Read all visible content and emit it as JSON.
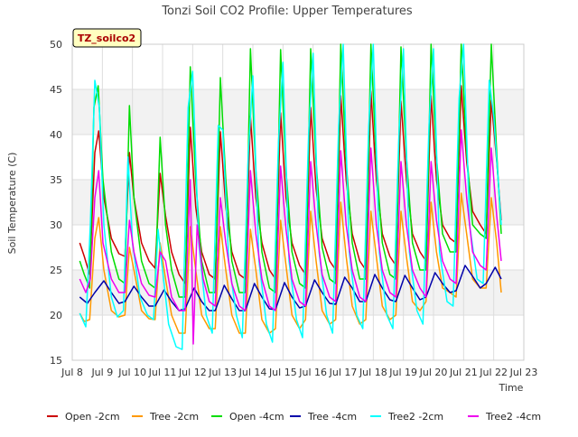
{
  "chart_data": {
    "type": "line",
    "title": "Tonzi Soil CO2 Profile: Upper Temperatures",
    "xlabel": "Time",
    "ylabel": "Soil Temperature (C)",
    "badge": "TZ_soilco2",
    "ylim": [
      15,
      50
    ],
    "yticks": [
      15,
      20,
      25,
      30,
      35,
      40,
      45,
      50
    ],
    "xlim": [
      8,
      23
    ],
    "xticks": [
      8,
      9,
      10,
      11,
      12,
      13,
      14,
      15,
      16,
      17,
      18,
      19,
      20,
      21,
      22,
      23
    ],
    "xtick_labels": [
      "Jul 8",
      "Jul 9",
      "Jul 10",
      "Jul 11",
      "Jul 12",
      "Jul 13",
      "Jul 14",
      "Jul 15",
      "Jul 16",
      "Jul 17",
      "Jul 18",
      "Jul 19",
      "Jul 20",
      "Jul 21",
      "Jul 22",
      "Jul 23"
    ],
    "grid": true,
    "legend_position": "bottom",
    "band_color": "#f2f2f2",
    "series": [
      {
        "name": "Open -2cm",
        "color": "#cc0000",
        "x": [
          8.25,
          8.4,
          8.58,
          8.75,
          8.88,
          9.05,
          9.3,
          9.55,
          9.75,
          9.9,
          10.05,
          10.3,
          10.55,
          10.75,
          10.92,
          11.1,
          11.3,
          11.55,
          11.75,
          11.92,
          12.1,
          12.3,
          12.55,
          12.75,
          12.92,
          13.1,
          13.3,
          13.55,
          13.75,
          13.92,
          14.1,
          14.3,
          14.55,
          14.75,
          14.92,
          15.1,
          15.3,
          15.55,
          15.75,
          15.92,
          16.1,
          16.3,
          16.55,
          16.75,
          16.92,
          17.1,
          17.3,
          17.55,
          17.75,
          17.92,
          18.1,
          18.3,
          18.55,
          18.75,
          18.92,
          19.1,
          19.3,
          19.55,
          19.75,
          19.92,
          20.1,
          20.3,
          20.55,
          20.75,
          20.92,
          21.1,
          21.3,
          21.55,
          21.75,
          21.92,
          22.1,
          22.25
        ],
        "y": [
          28,
          26.5,
          24.5,
          38,
          40.4,
          33,
          28.5,
          26.8,
          26.5,
          38,
          33,
          28,
          26,
          25.2,
          35.7,
          31,
          27,
          24.5,
          23.5,
          40.8,
          32,
          27,
          24.5,
          24,
          40.3,
          32,
          27,
          24.5,
          24,
          42,
          33,
          28,
          25,
          24,
          42.4,
          33,
          28,
          25.5,
          24.5,
          43,
          34,
          28.5,
          26,
          25,
          44.3,
          35,
          29,
          26,
          25,
          44.8,
          35,
          29,
          26.5,
          25.5,
          43.7,
          35,
          29,
          27,
          26,
          44.3,
          35,
          30,
          28.5,
          28,
          45.4,
          37,
          31.5,
          30,
          29,
          43.8,
          37,
          30.5
        ]
      },
      {
        "name": "Tree -2cm",
        "color": "#ff9900",
        "x": [
          8.25,
          8.4,
          8.58,
          8.75,
          8.88,
          9.05,
          9.3,
          9.55,
          9.75,
          9.9,
          10.05,
          10.3,
          10.55,
          10.75,
          10.92,
          11.1,
          11.3,
          11.55,
          11.75,
          11.92,
          12.1,
          12.3,
          12.55,
          12.75,
          12.92,
          13.1,
          13.3,
          13.55,
          13.75,
          13.92,
          14.1,
          14.3,
          14.55,
          14.75,
          14.92,
          15.1,
          15.3,
          15.55,
          15.75,
          15.92,
          16.1,
          16.3,
          16.55,
          16.75,
          16.92,
          17.1,
          17.3,
          17.55,
          17.75,
          17.92,
          18.1,
          18.3,
          18.55,
          18.75,
          18.92,
          19.1,
          19.3,
          19.55,
          19.75,
          19.92,
          20.1,
          20.3,
          20.55,
          20.75,
          20.92,
          21.1,
          21.3,
          21.55,
          21.75,
          21.92,
          22.1,
          22.25
        ],
        "y": [
          20.2,
          19.3,
          19.5,
          28.5,
          30.8,
          25,
          20.5,
          19.8,
          20,
          27.5,
          25,
          20.5,
          19.6,
          19.5,
          28,
          24,
          20,
          18,
          18,
          29.8,
          25,
          20,
          18.5,
          18.5,
          29.8,
          25,
          20,
          18,
          18,
          29.5,
          25,
          19.5,
          18,
          18.5,
          30.5,
          25.5,
          20,
          18.5,
          19.5,
          31.5,
          26,
          20.5,
          19,
          19.5,
          32.5,
          26.5,
          21,
          19,
          19.5,
          31.5,
          26.5,
          21,
          19.5,
          20,
          31.5,
          26.5,
          21.5,
          20.5,
          21.5,
          32.5,
          27,
          23,
          22.5,
          22,
          33.5,
          29,
          24,
          23,
          23,
          33,
          28,
          22.5
        ]
      },
      {
        "name": "Open -4cm",
        "color": "#00dd00",
        "x": [
          8.25,
          8.4,
          8.58,
          8.72,
          8.86,
          9.02,
          9.3,
          9.55,
          9.75,
          9.9,
          10.05,
          10.3,
          10.55,
          10.75,
          10.92,
          11.1,
          11.3,
          11.55,
          11.75,
          11.92,
          12.1,
          12.3,
          12.55,
          12.75,
          12.92,
          13.1,
          13.3,
          13.55,
          13.75,
          13.92,
          14.1,
          14.3,
          14.55,
          14.75,
          14.92,
          15.1,
          15.3,
          15.55,
          15.75,
          15.92,
          16.1,
          16.3,
          16.55,
          16.75,
          16.92,
          17.1,
          17.3,
          17.55,
          17.75,
          17.92,
          18.1,
          18.3,
          18.55,
          18.75,
          18.92,
          19.1,
          19.3,
          19.55,
          19.75,
          19.92,
          20.1,
          20.3,
          20.55,
          20.75,
          20.92,
          21.1,
          21.3,
          21.55,
          21.75,
          21.92,
          22.1,
          22.25
        ],
        "y": [
          26,
          24.5,
          23,
          43,
          45.4,
          35,
          27,
          24,
          23.5,
          43.2,
          33,
          26,
          23.5,
          23,
          39.7,
          30,
          25,
          22,
          22,
          47.5,
          35,
          26,
          22.5,
          22.5,
          46.3,
          35,
          26,
          22.5,
          22.5,
          49.5,
          36,
          27,
          23,
          22.5,
          49.4,
          36,
          27,
          23.5,
          23,
          49.5,
          37,
          27.5,
          24,
          23.5,
          50,
          37,
          28,
          24,
          24,
          50,
          37,
          28,
          24.5,
          24,
          49.7,
          37.5,
          28,
          25,
          25,
          50,
          37.5,
          29,
          27,
          27,
          50,
          38,
          30,
          29,
          28.5,
          50,
          38,
          29
        ]
      },
      {
        "name": "Tree -4cm",
        "color": "#0000aa",
        "x": [
          8.25,
          8.5,
          8.75,
          9.05,
          9.3,
          9.55,
          9.75,
          10.05,
          10.3,
          10.55,
          10.75,
          11.05,
          11.3,
          11.55,
          11.75,
          12.05,
          12.3,
          12.55,
          12.75,
          13.05,
          13.3,
          13.55,
          13.75,
          14.05,
          14.3,
          14.55,
          14.75,
          15.05,
          15.3,
          15.55,
          15.75,
          16.05,
          16.3,
          16.55,
          16.75,
          17.05,
          17.3,
          17.55,
          17.75,
          18.05,
          18.3,
          18.55,
          18.75,
          19.05,
          19.3,
          19.55,
          19.75,
          20.05,
          20.3,
          20.55,
          20.75,
          21.05,
          21.3,
          21.55,
          21.75,
          22.05,
          22.25
        ],
        "y": [
          22,
          21.3,
          22.5,
          23.8,
          22.5,
          21.3,
          21.5,
          23.2,
          22,
          21,
          21,
          22.8,
          21.5,
          20.5,
          20.7,
          23,
          21.5,
          20.5,
          20.5,
          23.3,
          21.8,
          20.5,
          20.5,
          23.5,
          22,
          20.7,
          20.6,
          23.6,
          22,
          20.8,
          21,
          23.9,
          22.5,
          21.3,
          21.2,
          24.2,
          23,
          21.5,
          21.5,
          24.5,
          23,
          21.7,
          21.5,
          24.4,
          23,
          21.7,
          22,
          24.7,
          23.5,
          22.5,
          22.7,
          25.5,
          24.3,
          23,
          23.5,
          25.3,
          24
        ]
      },
      {
        "name": "Tree2 -2cm",
        "color": "#00ffff",
        "x": [
          8.25,
          8.45,
          8.6,
          8.75,
          8.9,
          9.05,
          9.3,
          9.5,
          9.7,
          9.85,
          10.0,
          10.25,
          10.5,
          10.7,
          10.85,
          11.0,
          11.2,
          11.45,
          11.65,
          11.85,
          12.0,
          12.2,
          12.45,
          12.65,
          12.85,
          13.0,
          13.2,
          13.45,
          13.65,
          13.85,
          14.0,
          14.2,
          14.45,
          14.65,
          14.85,
          15.0,
          15.2,
          15.45,
          15.65,
          15.85,
          16.0,
          16.2,
          16.45,
          16.65,
          16.85,
          17.0,
          17.2,
          17.45,
          17.65,
          17.85,
          18.0,
          18.2,
          18.45,
          18.65,
          18.85,
          19.0,
          19.2,
          19.45,
          19.65,
          19.85,
          20.0,
          20.2,
          20.45,
          20.65,
          20.85,
          21.0,
          21.2,
          21.45,
          21.65,
          21.85,
          22.0,
          22.25
        ],
        "y": [
          20.2,
          18.7,
          30,
          46,
          43,
          30,
          22,
          19.8,
          20.5,
          37.5,
          28,
          22,
          20,
          19.5,
          29.5,
          25,
          19,
          16.5,
          16.2,
          43,
          47,
          28,
          20,
          18,
          41,
          40.5,
          26,
          20,
          17.5,
          38,
          46.5,
          26,
          19,
          17,
          39,
          48,
          26,
          19.5,
          17.5,
          40,
          49,
          27,
          20,
          18,
          41,
          50,
          27,
          20,
          18.5,
          41,
          50,
          27,
          20,
          18.5,
          40,
          49.5,
          27,
          20.5,
          19,
          41,
          49.5,
          27,
          21.5,
          21,
          44,
          50,
          30,
          24,
          23.5,
          46,
          42,
          30
        ]
      },
      {
        "name": "Tree2 -4cm",
        "color": "#ee00ee",
        "x": [
          8.25,
          8.45,
          8.6,
          8.75,
          8.88,
          9.02,
          9.3,
          9.55,
          9.75,
          9.9,
          10.05,
          10.3,
          10.55,
          10.75,
          10.92,
          11.1,
          11.3,
          11.55,
          11.75,
          11.92,
          12.02,
          12.15,
          12.35,
          12.55,
          12.75,
          12.92,
          13.1,
          13.3,
          13.55,
          13.75,
          13.92,
          14.1,
          14.3,
          14.55,
          14.75,
          14.92,
          15.1,
          15.3,
          15.55,
          15.75,
          15.92,
          16.1,
          16.3,
          16.55,
          16.75,
          16.92,
          17.1,
          17.3,
          17.55,
          17.75,
          17.92,
          18.1,
          18.3,
          18.55,
          18.75,
          18.92,
          19.1,
          19.3,
          19.55,
          19.75,
          19.92,
          20.1,
          20.3,
          20.55,
          20.75,
          20.92,
          21.1,
          21.3,
          21.55,
          21.75,
          21.92,
          22.1,
          22.25
        ],
        "y": [
          24,
          22.5,
          24,
          33,
          36,
          28,
          24,
          22.5,
          22.5,
          30.5,
          27,
          23.5,
          22.2,
          22,
          27,
          26,
          22,
          20.5,
          20.5,
          35,
          16.8,
          30,
          24,
          21.5,
          21,
          33,
          28,
          23.5,
          21,
          20.5,
          36,
          29,
          24,
          21,
          20.5,
          36.5,
          29.5,
          24,
          21.5,
          21,
          37,
          30,
          24.5,
          22,
          21.5,
          38.2,
          30,
          25,
          22,
          21.5,
          38.5,
          30,
          25,
          22.5,
          22,
          37,
          30,
          25,
          23,
          22,
          37,
          30.5,
          26,
          24,
          23.5,
          40.5,
          33,
          27,
          25.5,
          25,
          38.5,
          31,
          26
        ]
      }
    ]
  }
}
